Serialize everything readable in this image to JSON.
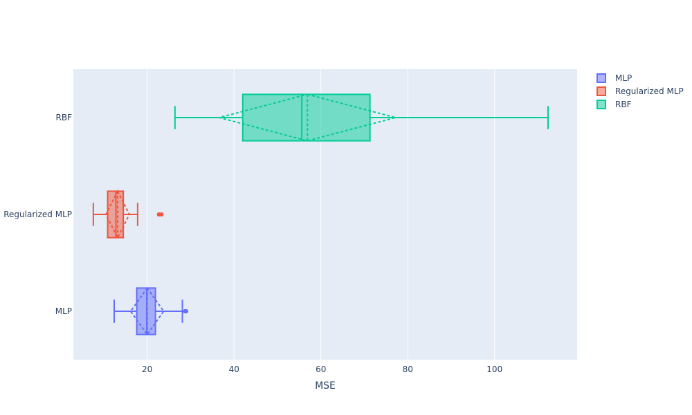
{
  "chart_data": {
    "type": "box",
    "orientation": "horizontal",
    "xlabel": "MSE",
    "ylabel": "",
    "xlim": [
      3,
      119
    ],
    "x_ticks": [
      20,
      40,
      60,
      80,
      100
    ],
    "categories": [
      "MLP",
      "Regularized MLP",
      "RBF"
    ],
    "grid": true,
    "legend_position": "top-right",
    "series": [
      {
        "name": "MLP",
        "color": "#636efa",
        "whisker_low": 12.4,
        "q1": 17.6,
        "median": 19.9,
        "q3": 21.9,
        "whisker_high": 28.1,
        "mean": 20.0,
        "sd": 3.8,
        "outliers": [
          28.7,
          29.0
        ]
      },
      {
        "name": "Regularized MLP",
        "color": "#ef553b",
        "whisker_low": 7.6,
        "q1": 10.9,
        "median": 12.8,
        "q3": 14.5,
        "whisker_high": 17.8,
        "mean": 13.2,
        "sd": 2.7,
        "outliers": [
          22.7,
          23.3
        ]
      },
      {
        "name": "RBF",
        "color": "#00cc96",
        "whisker_low": 26.4,
        "q1": 42.0,
        "median": 55.6,
        "q3": 71.3,
        "whisker_high": 112.3,
        "mean": 56.9,
        "sd": 20.3,
        "outliers": []
      }
    ]
  }
}
